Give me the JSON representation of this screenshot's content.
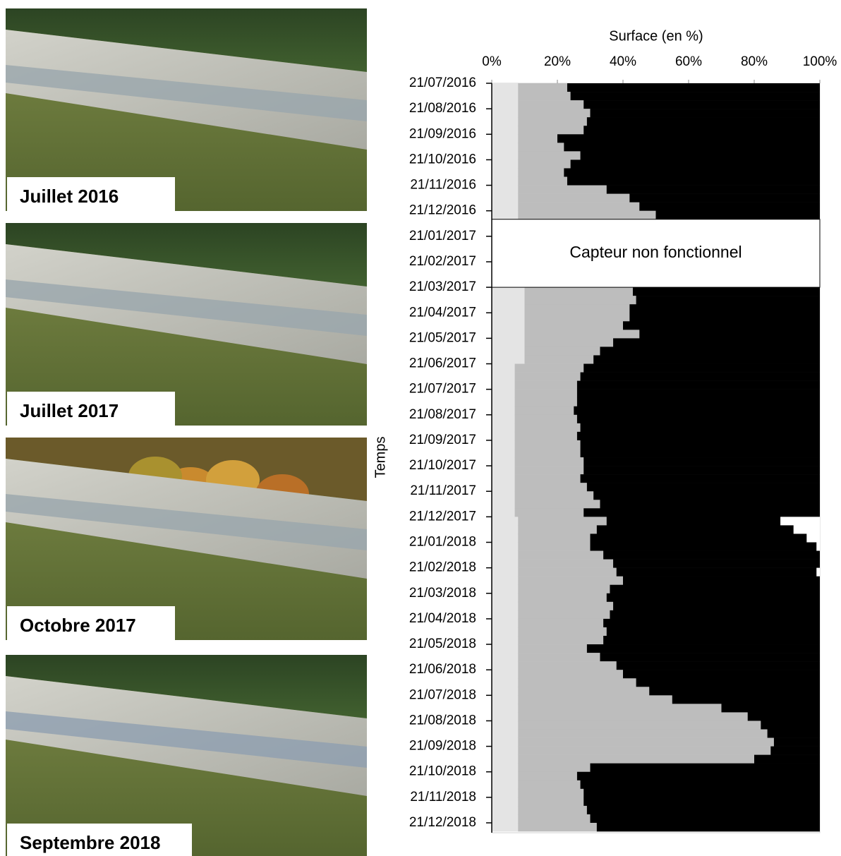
{
  "photos": [
    {
      "caption": "Juillet 2016"
    },
    {
      "caption": "Juillet 2017"
    },
    {
      "caption": "Octobre 2017"
    },
    {
      "caption": "Septembre 2018"
    }
  ],
  "chart_data": {
    "type": "bar",
    "orientation": "horizontal",
    "stacked": true,
    "x_label": "Surface (en %)",
    "y_label": "Temps",
    "annotation": "Capteur non fonctionnel",
    "xlim": [
      0,
      100
    ],
    "xticks": [
      {
        "value": 0,
        "label": "0%"
      },
      {
        "value": 20,
        "label": "20%"
      },
      {
        "value": 40,
        "label": "40%"
      },
      {
        "value": 60,
        "label": "60%"
      },
      {
        "value": 80,
        "label": "80%"
      },
      {
        "value": 100,
        "label": "100%"
      }
    ],
    "categories": [
      "21/07/2016",
      null,
      null,
      "21/08/2016",
      null,
      null,
      "21/09/2016",
      null,
      null,
      "21/10/2016",
      null,
      null,
      "21/11/2016",
      null,
      null,
      "21/12/2016",
      null,
      null,
      "21/01/2017",
      null,
      null,
      "21/02/2017",
      null,
      null,
      "21/03/2017",
      null,
      null,
      "21/04/2017",
      null,
      null,
      "21/05/2017",
      null,
      null,
      "21/06/2017",
      null,
      null,
      "21/07/2017",
      null,
      null,
      "21/08/2017",
      null,
      null,
      "21/09/2017",
      null,
      null,
      "21/10/2017",
      null,
      null,
      "21/11/2017",
      null,
      null,
      "21/12/2017",
      null,
      null,
      "21/01/2018",
      null,
      null,
      "21/02/2018",
      null,
      null,
      "21/03/2018",
      null,
      null,
      "21/04/2018",
      null,
      null,
      "21/05/2018",
      null,
      null,
      "21/06/2018",
      null,
      null,
      "21/07/2018",
      null,
      null,
      "21/08/2018",
      null,
      null,
      "21/09/2018",
      null,
      null,
      "21/10/2018",
      null,
      null,
      "21/11/2018",
      null,
      null,
      "21/12/2018"
    ],
    "series": [
      {
        "color": "#e4e4e4",
        "values": [
          8,
          8,
          8,
          8,
          8,
          8,
          8,
          8,
          8,
          8,
          8,
          8,
          8,
          8,
          8,
          8,
          null,
          null,
          null,
          null,
          null,
          null,
          null,
          null,
          10,
          10,
          10,
          10,
          10,
          10,
          10,
          10,
          10,
          7,
          7,
          7,
          7,
          7,
          7,
          7,
          7,
          7,
          7,
          7,
          7,
          7,
          7,
          7,
          7,
          7,
          7,
          8,
          8,
          8,
          8,
          8,
          8,
          8,
          8,
          8,
          8,
          8,
          8,
          8,
          8,
          8,
          8,
          8,
          8,
          8,
          8,
          8,
          8,
          8,
          8,
          8,
          8,
          8,
          8,
          8,
          8,
          8,
          8,
          8,
          8,
          8,
          8,
          8
        ]
      },
      {
        "color": "#bdbdbd",
        "values": [
          15,
          16,
          20,
          22,
          21,
          20,
          12,
          14,
          19,
          16,
          14,
          15,
          27,
          34,
          37,
          42,
          null,
          null,
          null,
          null,
          null,
          null,
          null,
          null,
          33,
          34,
          32,
          32,
          30,
          35,
          27,
          23,
          21,
          21,
          20,
          19,
          19,
          19,
          18,
          19,
          20,
          19,
          20,
          20,
          21,
          21,
          20,
          22,
          24,
          26,
          21,
          27,
          24,
          22,
          22,
          26,
          29,
          30,
          32,
          28,
          27,
          29,
          28,
          26,
          27,
          26,
          21,
          25,
          30,
          32,
          36,
          40,
          47,
          62,
          70,
          74,
          76,
          78,
          77,
          72,
          22,
          18,
          19,
          20,
          20,
          21,
          22,
          24
        ]
      },
      {
        "color": "#000000",
        "values": [
          77,
          76,
          72,
          70,
          71,
          72,
          80,
          78,
          73,
          76,
          78,
          77,
          65,
          58,
          55,
          50,
          null,
          null,
          null,
          null,
          null,
          null,
          null,
          null,
          57,
          56,
          58,
          58,
          60,
          55,
          63,
          67,
          69,
          72,
          73,
          74,
          74,
          74,
          75,
          74,
          73,
          74,
          73,
          73,
          72,
          72,
          73,
          71,
          69,
          67,
          72,
          53,
          60,
          66,
          69,
          66,
          63,
          61,
          60,
          64,
          65,
          63,
          64,
          66,
          65,
          66,
          71,
          67,
          62,
          60,
          56,
          52,
          45,
          30,
          22,
          18,
          16,
          14,
          15,
          20,
          70,
          74,
          73,
          72,
          72,
          71,
          70,
          68
        ]
      },
      {
        "color": "#ffffff",
        "values": [
          0,
          0,
          0,
          0,
          0,
          0,
          0,
          0,
          0,
          0,
          0,
          0,
          0,
          0,
          0,
          0,
          null,
          null,
          null,
          null,
          null,
          null,
          null,
          null,
          0,
          0,
          0,
          0,
          0,
          0,
          0,
          0,
          0,
          0,
          0,
          0,
          0,
          0,
          0,
          0,
          0,
          0,
          0,
          0,
          0,
          0,
          0,
          0,
          0,
          0,
          0,
          12,
          8,
          4,
          1,
          0,
          0,
          1,
          0,
          0,
          0,
          0,
          0,
          0,
          0,
          0,
          0,
          0,
          0,
          0,
          0,
          0,
          0,
          0,
          0,
          0,
          0,
          0,
          0,
          0,
          0,
          0,
          0,
          0,
          0,
          0,
          0,
          0
        ]
      }
    ]
  }
}
